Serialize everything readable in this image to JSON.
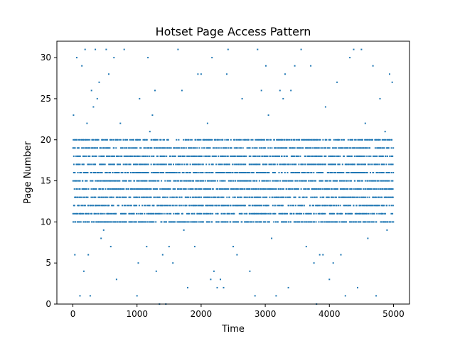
{
  "chart_data": {
    "type": "scatter",
    "title": "Hotset Page Access Pattern",
    "xlabel": "Time",
    "ylabel": "Page Number",
    "xlim": [
      -250,
      5250
    ],
    "ylim": [
      0,
      32
    ],
    "xticks": [
      0,
      1000,
      2000,
      3000,
      4000,
      5000
    ],
    "yticks": [
      0,
      5,
      10,
      15,
      20,
      25,
      30
    ],
    "grid": false,
    "marker_color": "#1f77b4",
    "hot_range": [
      10,
      20
    ],
    "hot_time_range": [
      0,
      5000
    ],
    "hot_accesses_per_row": 330,
    "cold_points": [
      {
        "x": 10,
        "y": 23
      },
      {
        "x": 30,
        "y": 6
      },
      {
        "x": 60,
        "y": 30
      },
      {
        "x": 110,
        "y": 1
      },
      {
        "x": 140,
        "y": 29
      },
      {
        "x": 170,
        "y": 4
      },
      {
        "x": 190,
        "y": 31
      },
      {
        "x": 220,
        "y": 22
      },
      {
        "x": 240,
        "y": 6
      },
      {
        "x": 270,
        "y": 1
      },
      {
        "x": 290,
        "y": 26
      },
      {
        "x": 320,
        "y": 24
      },
      {
        "x": 350,
        "y": 31
      },
      {
        "x": 380,
        "y": 25
      },
      {
        "x": 410,
        "y": 27
      },
      {
        "x": 440,
        "y": 8
      },
      {
        "x": 480,
        "y": 9
      },
      {
        "x": 520,
        "y": 31
      },
      {
        "x": 560,
        "y": 28
      },
      {
        "x": 590,
        "y": 7
      },
      {
        "x": 640,
        "y": 30
      },
      {
        "x": 680,
        "y": 3
      },
      {
        "x": 740,
        "y": 22
      },
      {
        "x": 800,
        "y": 31
      },
      {
        "x": 900,
        "y": 10
      },
      {
        "x": 1000,
        "y": 1
      },
      {
        "x": 1020,
        "y": 5
      },
      {
        "x": 1040,
        "y": 25
      },
      {
        "x": 1150,
        "y": 7
      },
      {
        "x": 1170,
        "y": 30
      },
      {
        "x": 1200,
        "y": 21
      },
      {
        "x": 1240,
        "y": 23
      },
      {
        "x": 1280,
        "y": 26
      },
      {
        "x": 1300,
        "y": 4
      },
      {
        "x": 1350,
        "y": 0
      },
      {
        "x": 1400,
        "y": 6
      },
      {
        "x": 1450,
        "y": 0
      },
      {
        "x": 1500,
        "y": 7
      },
      {
        "x": 1560,
        "y": 5
      },
      {
        "x": 1640,
        "y": 31
      },
      {
        "x": 1700,
        "y": 26
      },
      {
        "x": 1730,
        "y": 9
      },
      {
        "x": 1790,
        "y": 2
      },
      {
        "x": 1900,
        "y": 7
      },
      {
        "x": 1950,
        "y": 28
      },
      {
        "x": 2000,
        "y": 28
      },
      {
        "x": 2050,
        "y": 11
      },
      {
        "x": 2100,
        "y": 22
      },
      {
        "x": 2150,
        "y": 3
      },
      {
        "x": 2170,
        "y": 30
      },
      {
        "x": 2200,
        "y": 4
      },
      {
        "x": 2250,
        "y": 2
      },
      {
        "x": 2300,
        "y": 3
      },
      {
        "x": 2350,
        "y": 2
      },
      {
        "x": 2400,
        "y": 28
      },
      {
        "x": 2420,
        "y": 31
      },
      {
        "x": 2500,
        "y": 7
      },
      {
        "x": 2560,
        "y": 6
      },
      {
        "x": 2640,
        "y": 25
      },
      {
        "x": 2720,
        "y": 10
      },
      {
        "x": 2760,
        "y": 4
      },
      {
        "x": 2840,
        "y": 1
      },
      {
        "x": 2880,
        "y": 31
      },
      {
        "x": 2940,
        "y": 26
      },
      {
        "x": 3010,
        "y": 29
      },
      {
        "x": 3050,
        "y": 23
      },
      {
        "x": 3100,
        "y": 8
      },
      {
        "x": 3170,
        "y": 1
      },
      {
        "x": 3230,
        "y": 26
      },
      {
        "x": 3280,
        "y": 25
      },
      {
        "x": 3310,
        "y": 28
      },
      {
        "x": 3360,
        "y": 2
      },
      {
        "x": 3400,
        "y": 26
      },
      {
        "x": 3460,
        "y": 29
      },
      {
        "x": 3560,
        "y": 31
      },
      {
        "x": 3640,
        "y": 7
      },
      {
        "x": 3710,
        "y": 29
      },
      {
        "x": 3760,
        "y": 5
      },
      {
        "x": 3800,
        "y": 0
      },
      {
        "x": 3850,
        "y": 6
      },
      {
        "x": 3900,
        "y": 6
      },
      {
        "x": 3940,
        "y": 24
      },
      {
        "x": 4000,
        "y": 3
      },
      {
        "x": 4060,
        "y": 5
      },
      {
        "x": 4120,
        "y": 27
      },
      {
        "x": 4180,
        "y": 6
      },
      {
        "x": 4250,
        "y": 1
      },
      {
        "x": 4320,
        "y": 30
      },
      {
        "x": 4380,
        "y": 31
      },
      {
        "x": 4440,
        "y": 2
      },
      {
        "x": 4500,
        "y": 31
      },
      {
        "x": 4560,
        "y": 22
      },
      {
        "x": 4600,
        "y": 8
      },
      {
        "x": 4680,
        "y": 29
      },
      {
        "x": 4730,
        "y": 1
      },
      {
        "x": 4790,
        "y": 25
      },
      {
        "x": 4840,
        "y": 10
      },
      {
        "x": 4870,
        "y": 21
      },
      {
        "x": 4900,
        "y": 9
      },
      {
        "x": 4940,
        "y": 28
      },
      {
        "x": 4980,
        "y": 27
      }
    ]
  }
}
